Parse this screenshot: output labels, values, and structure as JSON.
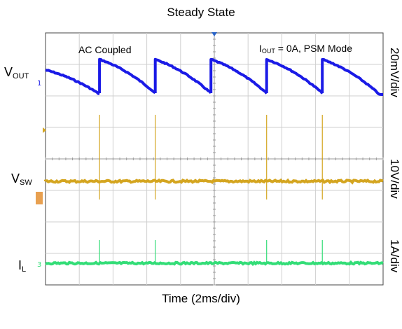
{
  "chart_data": {
    "type": "line",
    "title": "Steady State",
    "xlabel": "Time (2ms/div)",
    "grid": true,
    "divisions": {
      "x": 10,
      "y": 8
    },
    "time_per_div_ms": 2,
    "annotations": {
      "coupling": "AC Coupled",
      "condition_prefix": "I",
      "condition_sub": "OUT",
      "condition_rest": " = 0A, PSM Mode"
    },
    "channels": [
      {
        "label": "V",
        "sub": "OUT",
        "scale": "20mV/div",
        "color": "#1a1ae6",
        "waveform": "sawtooth",
        "pulse_times_div": [
          1.6,
          3.25,
          4.9,
          6.55,
          8.2
        ]
      },
      {
        "label": "V",
        "sub": "SW",
        "scale": "10V/div",
        "color": "#d4a520",
        "waveform": "switching-spikes",
        "pulse_times_div": [
          1.6,
          3.25,
          6.55,
          8.2
        ]
      },
      {
        "label": "I",
        "sub": "L",
        "scale": "1A/div",
        "color": "#33dd77",
        "waveform": "current-spikes",
        "pulse_times_div": [
          1.6,
          3.25,
          6.55,
          8.2
        ]
      }
    ]
  }
}
